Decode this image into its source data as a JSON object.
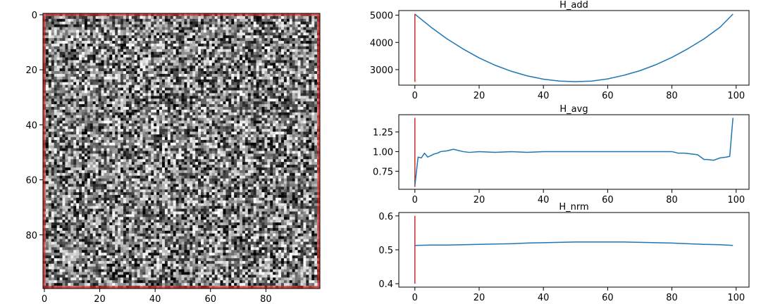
{
  "chart_data": [
    {
      "type": "heatmap",
      "colormap": "gray",
      "edge_color": "#d62728",
      "size": [
        100,
        100
      ],
      "x_ticks": [
        "0",
        "20",
        "40",
        "60",
        "80"
      ],
      "y_ticks": [
        "0",
        "20",
        "40",
        "60",
        "80"
      ],
      "xlim": [
        0,
        99
      ],
      "ylim": [
        99,
        0
      ],
      "cell_values": "random noise, uniform 0-1 per cell (not individually legible)"
    },
    {
      "type": "line",
      "title": "H_add",
      "color": "#1f77b4",
      "marker_line": {
        "x": 0,
        "y": [
          2550,
          5050
        ],
        "color": "#d62728"
      },
      "x": [
        0,
        5,
        10,
        15,
        20,
        25,
        30,
        35,
        40,
        45,
        50,
        55,
        60,
        65,
        70,
        75,
        80,
        85,
        90,
        95,
        99
      ],
      "y": [
        5040,
        4560,
        4130,
        3760,
        3430,
        3160,
        2940,
        2770,
        2650,
        2580,
        2560,
        2580,
        2660,
        2790,
        2960,
        3180,
        3450,
        3770,
        4130,
        4560,
        5040
      ],
      "x_ticks": [
        "0",
        "20",
        "40",
        "60",
        "80",
        "100"
      ],
      "y_ticks": [
        "3000",
        "4000",
        "5000"
      ],
      "xlim": [
        -5,
        104
      ],
      "ylim": [
        2430,
        5170
      ],
      "grid": false
    },
    {
      "type": "line",
      "title": "H_avg",
      "color": "#1f77b4",
      "marker_line": {
        "x": 0,
        "y": [
          0.55,
          1.43
        ],
        "color": "#d62728"
      },
      "x": [
        0,
        1,
        2,
        3,
        4,
        5,
        6,
        7,
        8,
        10,
        12,
        13,
        15,
        17,
        20,
        25,
        30,
        35,
        40,
        45,
        50,
        55,
        60,
        65,
        70,
        75,
        80,
        82,
        84,
        86,
        88,
        90,
        91,
        93,
        95,
        97,
        98,
        99
      ],
      "y": [
        0.57,
        0.93,
        0.92,
        0.98,
        0.93,
        0.95,
        0.97,
        0.98,
        1.0,
        1.01,
        1.03,
        1.02,
        1.0,
        0.99,
        1.0,
        0.99,
        1.0,
        0.99,
        1.0,
        1.0,
        1.0,
        1.0,
        1.0,
        1.0,
        1.0,
        1.0,
        1.0,
        0.98,
        0.98,
        0.97,
        0.96,
        0.9,
        0.9,
        0.89,
        0.92,
        0.93,
        0.94,
        1.43
      ],
      "x_ticks": [
        "0",
        "20",
        "40",
        "60",
        "80",
        "100"
      ],
      "y_ticks": [
        "0.75",
        "1.00",
        "1.25"
      ],
      "xlim": [
        -5,
        104
      ],
      "ylim": [
        0.52,
        1.47
      ],
      "grid": false
    },
    {
      "type": "line",
      "title": "H_nrm",
      "color": "#1f77b4",
      "marker_line": {
        "x": 0,
        "y": [
          0.4,
          0.6
        ],
        "color": "#d62728"
      },
      "x": [
        0,
        5,
        10,
        15,
        20,
        25,
        30,
        35,
        40,
        45,
        50,
        55,
        60,
        65,
        70,
        75,
        80,
        85,
        90,
        95,
        99
      ],
      "y": [
        0.513,
        0.514,
        0.514,
        0.515,
        0.516,
        0.517,
        0.518,
        0.52,
        0.521,
        0.522,
        0.523,
        0.523,
        0.523,
        0.523,
        0.522,
        0.521,
        0.52,
        0.518,
        0.516,
        0.515,
        0.513
      ],
      "x_ticks": [
        "0",
        "20",
        "40",
        "60",
        "80",
        "100"
      ],
      "y_ticks": [
        "0.4",
        "0.5",
        "0.6"
      ],
      "xlim": [
        -5,
        104
      ],
      "ylim": [
        0.39,
        0.61
      ],
      "grid": false
    }
  ]
}
